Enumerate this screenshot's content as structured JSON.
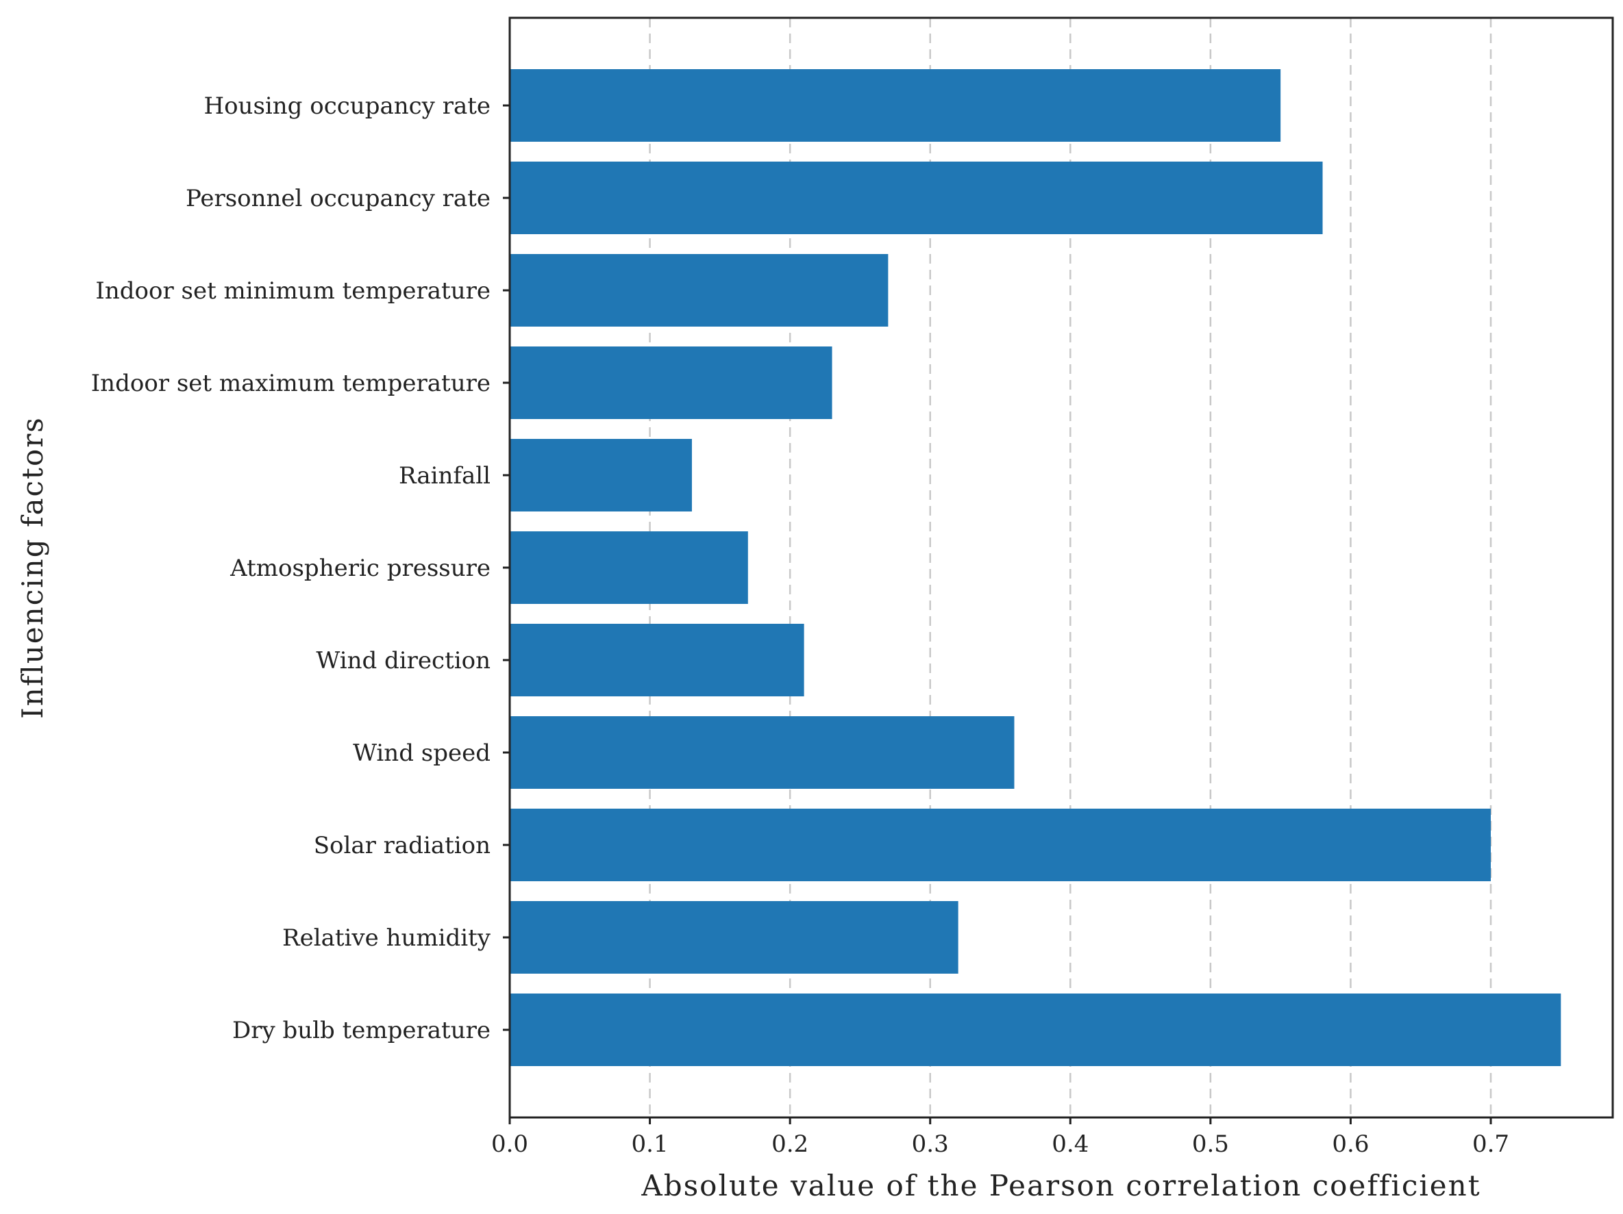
{
  "chart_data": {
    "type": "bar",
    "orientation": "horizontal",
    "xlabel": "Absolute value of the Pearson correlation coefficient",
    "ylabel": "Influencing factors",
    "xlim": [
      0,
      0.787
    ],
    "xticks": [
      0.0,
      0.1,
      0.2,
      0.3,
      0.4,
      0.5,
      0.6,
      0.7
    ],
    "xtick_labels": [
      "0.0",
      "0.1",
      "0.2",
      "0.3",
      "0.4",
      "0.5",
      "0.6",
      "0.7"
    ],
    "grid": "x-dashed",
    "bar_color": "#2077b4",
    "categories": [
      "Housing occupancy rate",
      "Personnel occupancy rate",
      "Indoor set minimum temperature",
      "Indoor set maximum temperature",
      "Rainfall",
      "Atmospheric pressure",
      "Wind direction",
      "Wind speed",
      "Solar radiation",
      "Relative humidity",
      "Dry bulb temperature"
    ],
    "values": [
      0.55,
      0.58,
      0.27,
      0.23,
      0.13,
      0.17,
      0.21,
      0.36,
      0.7,
      0.32,
      0.75
    ]
  }
}
